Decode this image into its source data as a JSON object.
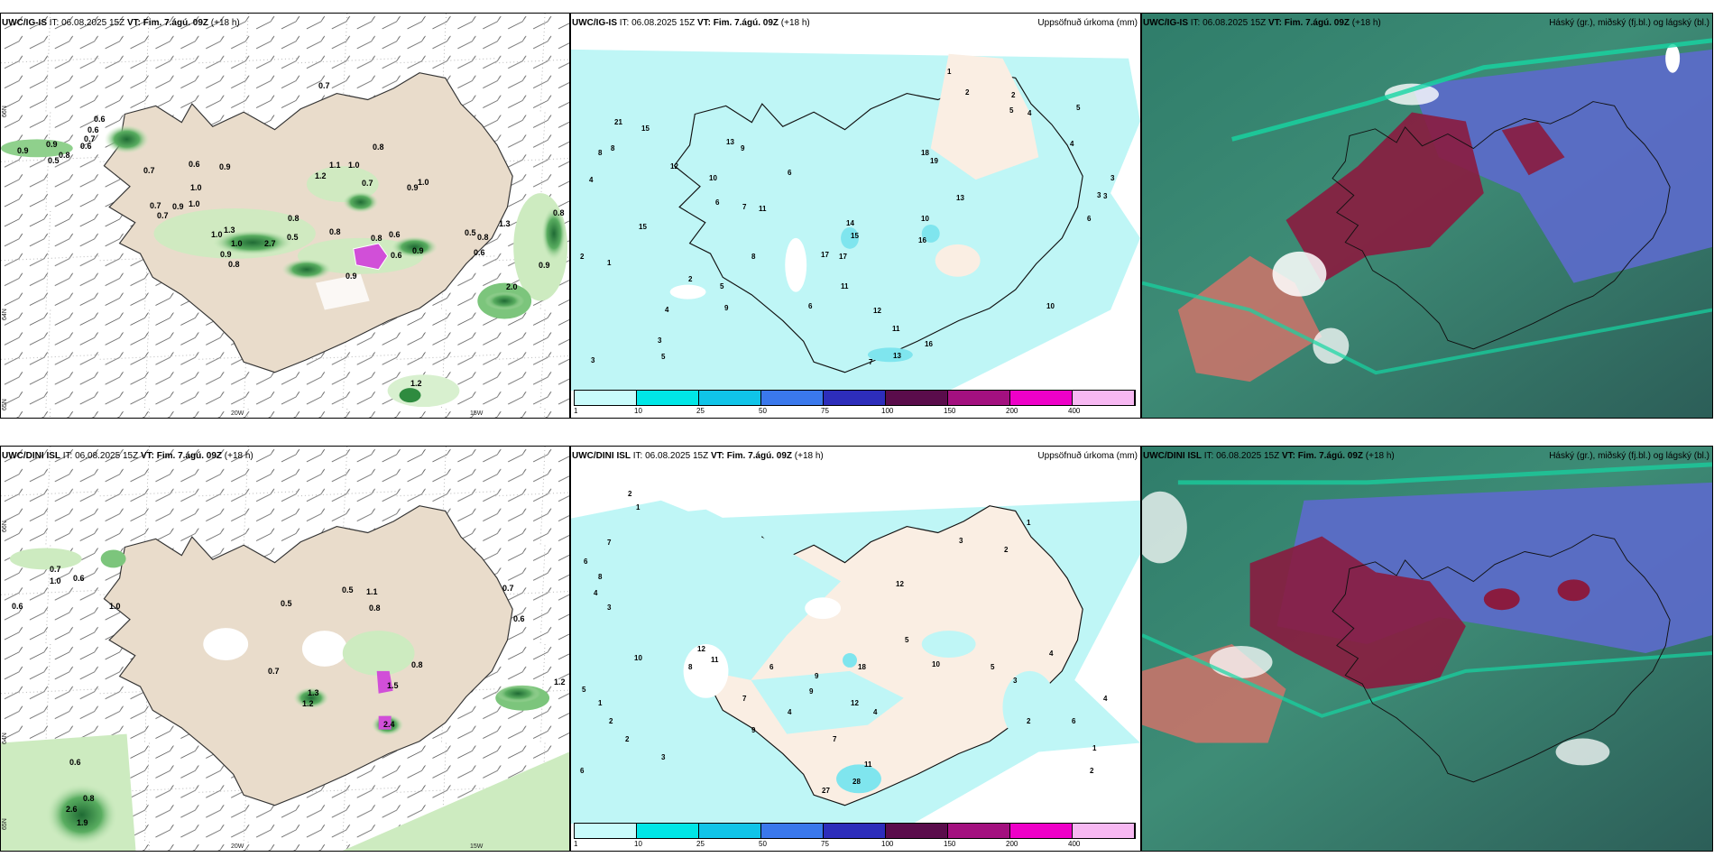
{
  "colors": {
    "land": "#e9dccb",
    "sea_precip": "#bff6f6",
    "green_light": "#cdebc0",
    "green_dark": "#2e8b3f",
    "magenta": "#d14fd8",
    "cloud_high": "#5b6cc7",
    "cloud_mid": "#8a1b3f",
    "cloud_low": "#3e8c76"
  },
  "rows": [
    {
      "model": "UWC/IG-IS",
      "it_label": "IT:",
      "it_value": "06.08.2025 15Z",
      "vt_label": "VT:",
      "vt_value": "Fim. 7.ágú. 09Z",
      "lead": "(+18 h)",
      "precip_title": "Uppsöfnuð úrkoma (mm)",
      "cloud_title": "Háský (gr.), miðský (fj.bl.) og lágský (bl.)",
      "wind_labels": [
        "0.7",
        "0.6",
        "0.6",
        "0.7",
        "0.6",
        "0.9",
        "0.5",
        "0.9",
        "0.8",
        "0.7",
        "0.6",
        "0.9",
        "1.1",
        "1.0",
        "0.8",
        "1.2",
        "0.7",
        "1.0",
        "0.9",
        "1.0",
        "0.7",
        "1.0",
        "0.7",
        "0.9",
        "1.0",
        "0.8",
        "0.5",
        "0.8",
        "1.3",
        "1.0",
        "0.9",
        "2.7",
        "0.8",
        "0.9",
        "0.8",
        "0.6",
        "0.9",
        "0.6",
        "0.5",
        "0.8",
        "1.3",
        "0.6",
        "0.8",
        "0.9",
        "2.0",
        "1.2"
      ],
      "precip_numbers": [
        "1",
        "2",
        "2",
        "5",
        "4",
        "3",
        "21",
        "15",
        "12",
        "10",
        "13",
        "9",
        "8",
        "8",
        "4",
        "6",
        "7",
        "15",
        "11",
        "17",
        "12",
        "15",
        "16",
        "13",
        "11",
        "14",
        "11",
        "10",
        "6",
        "3",
        "2",
        "1",
        "3",
        "5",
        "9",
        "4",
        "2",
        "5",
        "8",
        "6",
        "17",
        "19",
        "18",
        "13",
        "7",
        "3",
        "4",
        "5",
        "10",
        "16",
        "6",
        "3"
      ]
    },
    {
      "model": "UWC/DINI ISL",
      "it_label": "IT:",
      "it_value": "06.08.2025 15Z",
      "vt_label": "VT:",
      "vt_value": "Fim. 7.ágú. 09Z",
      "lead": "(+18 h)",
      "precip_title": "Uppsöfnuð úrkoma (mm)",
      "cloud_title": "Háský (gr.), miðský (fj.bl.) og lágský (bl.)",
      "wind_labels": [
        "0.7",
        "1.0",
        "0.6",
        "0.6",
        "1.0",
        "0.5",
        "0.5",
        "1.1",
        "0.8",
        "0.7",
        "1.3",
        "1.2",
        "0.8",
        "1.5",
        "2.4",
        "0.7",
        "0.6",
        "1.2",
        "0.6",
        "0.8",
        "2.6",
        "1.9"
      ],
      "precip_numbers": [
        "2",
        "1",
        "7",
        "6",
        "8",
        "4",
        "3",
        "5",
        "2",
        "10",
        "12",
        "11",
        "8",
        "9",
        "7",
        "18",
        "12",
        "9",
        "6",
        "4",
        "7",
        "3",
        "2",
        "1",
        "10",
        "12",
        "5",
        "3",
        "2",
        "4",
        "6",
        "1",
        "27",
        "28",
        "11",
        "4",
        "9",
        "5",
        "3",
        "2",
        "1",
        "6",
        "4",
        "2"
      ]
    }
  ],
  "axes": {
    "lat_66": "66N",
    "lat_64": "64N",
    "lat_65": "65N",
    "lon_20w": "20W",
    "lon_15w": "15W",
    "lon_25w": "25W"
  },
  "colorbar": {
    "ticks": [
      "1",
      "10",
      "25",
      "50",
      "75",
      "100",
      "150",
      "200",
      "400"
    ],
    "colors": [
      "#c8fbfb",
      "#00e6e6",
      "#10c4e8",
      "#3a78ec",
      "#2d2dbb",
      "#5a0c4b",
      "#a3107f",
      "#ee00c8",
      "#f7b8f2"
    ]
  }
}
